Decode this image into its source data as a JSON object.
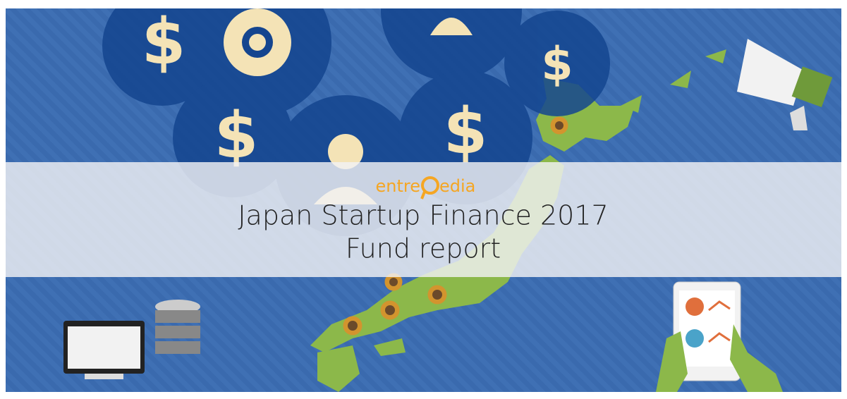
{
  "banner": {
    "logo": {
      "left": "entre",
      "right": "edia"
    },
    "title": "Japan Startup Finance 2017",
    "subtitle": "Fund report",
    "dollar_signs": [
      "$",
      "$",
      "$",
      "$"
    ]
  }
}
